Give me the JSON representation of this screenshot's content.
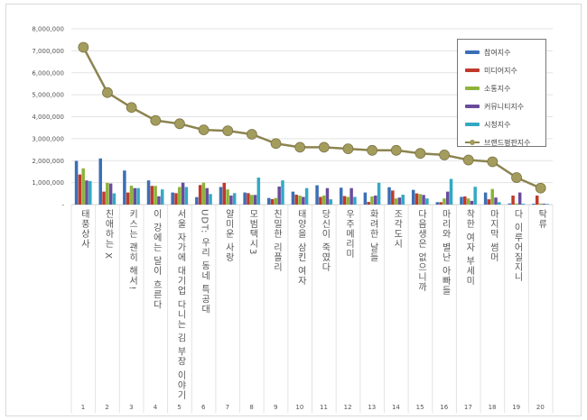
{
  "chart_data": {
    "type": "bar+line",
    "title": "",
    "xlabel": "",
    "ylabel": "",
    "ylim": [
      0,
      8000000
    ],
    "yticks": [
      "-",
      "1,000,000",
      "2,000,000",
      "3,000,000",
      "4,000,000",
      "5,000,000",
      "6,000,000",
      "7,000,000",
      "8,000,000"
    ],
    "grid": true,
    "legend_position": "top-right",
    "categories": [
      "태풍상사",
      "친애하는 X",
      "키스는 괜히 해서!",
      "이 강에는 달이 흐른다",
      "서울 자가에 대기업 다니는 김 부장 이야기",
      "UDT: 우리 동네 특공대",
      "얄미운 사랑",
      "모범택시3",
      "친밀한 리플리",
      "태양을 삼킨 여자",
      "당신이 죽였다",
      "우주메리미",
      "화려한 날들",
      "조각도시",
      "다음생은 없으니까",
      "마리와 별난 아빠들",
      "착한 여자 부세미",
      "마지막 썸머",
      "다 이루어질지니",
      "탁류"
    ],
    "ranks": [
      "1",
      "2",
      "3",
      "4",
      "5",
      "6",
      "7",
      "8",
      "9",
      "10",
      "11",
      "12",
      "13",
      "14",
      "15",
      "16",
      "17",
      "18",
      "19",
      "20"
    ],
    "series": [
      {
        "name": "참여지수",
        "type": "bar",
        "color": "#3b6fb6",
        "values": [
          1990000,
          2100000,
          1550000,
          1100000,
          550000,
          340000,
          800000,
          550000,
          300000,
          590000,
          880000,
          770000,
          550000,
          790000,
          670000,
          110000,
          350000,
          550000,
          50000,
          40000
        ]
      },
      {
        "name": "미디어지수",
        "type": "bar",
        "color": "#c0392b",
        "values": [
          1370000,
          590000,
          550000,
          850000,
          520000,
          890000,
          990000,
          520000,
          250000,
          450000,
          350000,
          390000,
          120000,
          640000,
          510000,
          110000,
          370000,
          240000,
          410000,
          410000
        ]
      },
      {
        "name": "소통지수",
        "type": "bar",
        "color": "#8db33a",
        "values": [
          1650000,
          990000,
          860000,
          850000,
          800000,
          1000000,
          690000,
          440000,
          300000,
          410000,
          410000,
          350000,
          370000,
          280000,
          480000,
          280000,
          280000,
          710000,
          50000,
          50000
        ]
      },
      {
        "name": "커뮤니티지수",
        "type": "bar",
        "color": "#6a4c9c",
        "values": [
          1100000,
          960000,
          750000,
          380000,
          1000000,
          750000,
          410000,
          440000,
          820000,
          350000,
          750000,
          750000,
          410000,
          320000,
          440000,
          590000,
          170000,
          320000,
          550000,
          40000
        ]
      },
      {
        "name": "시청지수",
        "type": "bar",
        "color": "#33a9c4",
        "values": [
          1070000,
          510000,
          750000,
          690000,
          800000,
          480000,
          520000,
          1230000,
          1100000,
          750000,
          240000,
          350000,
          990000,
          450000,
          280000,
          1170000,
          810000,
          110000,
          40000,
          30000
        ]
      },
      {
        "name": "브랜드평판지수",
        "type": "line",
        "color": "#8c8450",
        "values": [
          7160000,
          5100000,
          4420000,
          3830000,
          3680000,
          3400000,
          3360000,
          3200000,
          2780000,
          2610000,
          2610000,
          2540000,
          2470000,
          2470000,
          2330000,
          2260000,
          2030000,
          1950000,
          1230000,
          750000
        ]
      }
    ]
  }
}
